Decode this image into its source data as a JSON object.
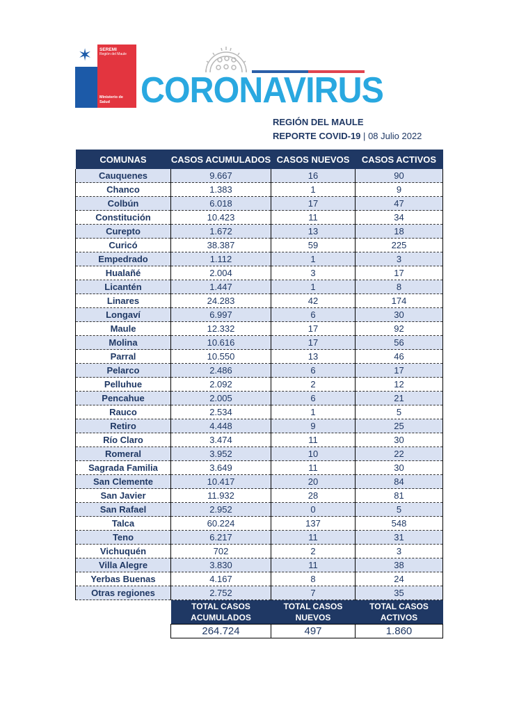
{
  "logo": {
    "org": "SEREMI",
    "region": "Región del Maule",
    "ministry": "Ministerio de Salud"
  },
  "header": {
    "title": "CORONAVIRUS",
    "region": "REGIÓN DEL MAULE",
    "report_label": "REPORTE COVID-19",
    "separator": "|",
    "date": "08 Julio 2022"
  },
  "colors": {
    "navy": "#1f3864",
    "title_blue": "#29a8e0",
    "row_alt": "#d9e1f2"
  },
  "table": {
    "columns": [
      "COMUNAS",
      "CASOS ACUMULADOS",
      "CASOS NUEVOS",
      "CASOS ACTIVOS"
    ],
    "rows": [
      [
        "Cauquenes",
        "9.667",
        "16",
        "90"
      ],
      [
        "Chanco",
        "1.383",
        "1",
        "9"
      ],
      [
        "Colbún",
        "6.018",
        "17",
        "47"
      ],
      [
        "Constitución",
        "10.423",
        "11",
        "34"
      ],
      [
        "Curepto",
        "1.672",
        "13",
        "18"
      ],
      [
        "Curicó",
        "38.387",
        "59",
        "225"
      ],
      [
        "Empedrado",
        "1.112",
        "1",
        "3"
      ],
      [
        "Hualañé",
        "2.004",
        "3",
        "17"
      ],
      [
        "Licantén",
        "1.447",
        "1",
        "8"
      ],
      [
        "Linares",
        "24.283",
        "42",
        "174"
      ],
      [
        "Longaví",
        "6.997",
        "6",
        "30"
      ],
      [
        "Maule",
        "12.332",
        "17",
        "92"
      ],
      [
        "Molina",
        "10.616",
        "17",
        "56"
      ],
      [
        "Parral",
        "10.550",
        "13",
        "46"
      ],
      [
        "Pelarco",
        "2.486",
        "6",
        "17"
      ],
      [
        "Pelluhue",
        "2.092",
        "2",
        "12"
      ],
      [
        "Pencahue",
        "2.005",
        "6",
        "21"
      ],
      [
        "Rauco",
        "2.534",
        "1",
        "5"
      ],
      [
        "Retiro",
        "4.448",
        "9",
        "25"
      ],
      [
        "Río Claro",
        "3.474",
        "11",
        "30"
      ],
      [
        "Romeral",
        "3.952",
        "10",
        "22"
      ],
      [
        "Sagrada Familia",
        "3.649",
        "11",
        "30"
      ],
      [
        "San Clemente",
        "10.417",
        "20",
        "84"
      ],
      [
        "San Javier",
        "11.932",
        "28",
        "81"
      ],
      [
        "San Rafael",
        "2.952",
        "0",
        "5"
      ],
      [
        "Talca",
        "60.224",
        "137",
        "548"
      ],
      [
        "Teno",
        "6.217",
        "11",
        "31"
      ],
      [
        "Vichuquén",
        "702",
        "2",
        "3"
      ],
      [
        "Villa Alegre",
        "3.830",
        "11",
        "38"
      ],
      [
        "Yerbas Buenas",
        "4.167",
        "8",
        "24"
      ],
      [
        "Otras regiones",
        "2.752",
        "7",
        "35"
      ]
    ]
  },
  "totals": {
    "labels": [
      [
        "TOTAL CASOS",
        "ACUMULADOS"
      ],
      [
        "TOTAL CASOS",
        "NUEVOS"
      ],
      [
        "TOTAL CASOS",
        "ACTIVOS"
      ]
    ],
    "values": [
      "264.724",
      "497",
      "1.860"
    ]
  }
}
